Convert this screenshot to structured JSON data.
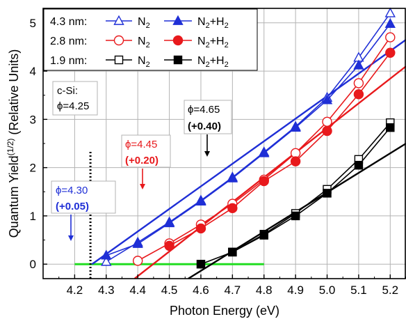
{
  "chart_data": {
    "type": "line",
    "xlabel": "Photon Energy (eV)",
    "ylabel_main": "Quantum Yield",
    "ylabel_sup": "(1/2)",
    "ylabel_units": " (Relative Units)",
    "xlim": [
      4.1,
      5.25
    ],
    "ylim": [
      -0.3,
      5.3
    ],
    "xticks": [
      "4.2",
      "4.3",
      "4.4",
      "4.5",
      "4.6",
      "4.7",
      "4.8",
      "4.9",
      "5.0",
      "5.1",
      "5.2"
    ],
    "yticks": [
      "0",
      "1",
      "2",
      "3",
      "4",
      "5"
    ],
    "grid": true,
    "colors": {
      "blue": "#1f2fd6",
      "red": "#e8191c",
      "black": "#000000",
      "green": "#22dd22"
    },
    "legend": {
      "placement": "top-left",
      "rows": [
        {
          "prefix": "4.3 nm:",
          "open_label": "N",
          "open_sub": "2",
          "filled_label": "N",
          "filled_sub": "2",
          "filled_plus": "+H",
          "filled_sub2": "2",
          "color": "blue",
          "marker": "triangle"
        },
        {
          "prefix": "2.8 nm:",
          "open_label": "N",
          "open_sub": "2",
          "filled_label": "N",
          "filled_sub": "2",
          "filled_plus": "+H",
          "filled_sub2": "2",
          "color": "red",
          "marker": "circle"
        },
        {
          "prefix": "1.9 nm:",
          "open_label": "N",
          "open_sub": "2",
          "filled_label": "N",
          "filled_sub": "2",
          "filled_plus": "+H",
          "filled_sub2": "2",
          "color": "black",
          "marker": "square"
        }
      ]
    },
    "series": [
      {
        "thickness": "4.3 nm",
        "gas": "N2",
        "color": "blue",
        "marker": "triangle",
        "filled": false,
        "x": [
          4.3,
          4.4,
          4.5,
          4.6,
          4.7,
          4.8,
          4.9,
          5.0,
          5.1,
          5.2
        ],
        "y": [
          0.05,
          0.45,
          0.87,
          1.32,
          1.8,
          2.32,
          2.85,
          3.45,
          4.28,
          5.2
        ]
      },
      {
        "thickness": "4.3 nm",
        "gas": "N2+H2",
        "color": "blue",
        "marker": "triangle",
        "filled": true,
        "x": [
          4.3,
          4.4,
          4.5,
          4.6,
          4.7,
          4.8,
          4.9,
          5.0,
          5.1,
          5.2
        ],
        "y": [
          0.18,
          0.42,
          0.85,
          1.3,
          1.78,
          2.3,
          2.83,
          3.4,
          4.12,
          4.98
        ]
      },
      {
        "thickness": "2.8 nm",
        "gas": "N2",
        "color": "red",
        "marker": "circle",
        "filled": false,
        "x": [
          4.4,
          4.5,
          4.6,
          4.7,
          4.8,
          4.9,
          5.0,
          5.1,
          5.2
        ],
        "y": [
          0.07,
          0.43,
          0.82,
          1.25,
          1.75,
          2.3,
          2.95,
          3.75,
          4.7
        ]
      },
      {
        "thickness": "2.8 nm",
        "gas": "N2+H2",
        "color": "red",
        "marker": "circle",
        "filled": true,
        "x": [
          4.5,
          4.6,
          4.7,
          4.8,
          4.9,
          5.0,
          5.1,
          5.2
        ],
        "y": [
          0.38,
          0.74,
          1.16,
          1.72,
          2.13,
          2.76,
          3.52,
          4.38
        ]
      },
      {
        "thickness": "1.9 nm",
        "gas": "N2",
        "color": "black",
        "marker": "square",
        "filled": false,
        "x": [
          4.7,
          4.8,
          4.9,
          5.0,
          5.1,
          5.2
        ],
        "y": [
          0.25,
          0.62,
          1.05,
          1.55,
          2.17,
          2.93
        ]
      },
      {
        "thickness": "1.9 nm",
        "gas": "N2+H2",
        "color": "black",
        "marker": "square",
        "filled": true,
        "x": [
          4.6,
          4.7,
          4.8,
          4.9,
          5.0,
          5.1,
          5.2
        ],
        "y": [
          0.0,
          0.25,
          0.6,
          1.0,
          1.47,
          2.05,
          2.83
        ]
      }
    ],
    "fit_lines": [
      {
        "color": "blue",
        "x": [
          4.255,
          5.25
        ],
        "y": [
          0.0,
          4.65
        ]
      },
      {
        "color": "red",
        "x": [
          4.39,
          5.25
        ],
        "y": [
          -0.3,
          4.1
        ]
      },
      {
        "color": "black",
        "x": [
          4.56,
          5.25
        ],
        "y": [
          -0.3,
          2.5
        ]
      }
    ],
    "baseline": {
      "color": "green",
      "x": [
        4.2,
        4.8
      ],
      "y": [
        0,
        0
      ]
    },
    "reference_line": {
      "x": 4.25,
      "y": [
        -0.3,
        2.35
      ]
    },
    "annotations": [
      {
        "id": "csi",
        "lines": [
          "c-Si:",
          "ϕ=4.25"
        ],
        "color": "black",
        "bold": [
          false,
          false
        ],
        "box": true,
        "arrow": false
      },
      {
        "id": "blue-phi",
        "lines": [
          "ϕ=4.30",
          "(+0.05)"
        ],
        "color": "blue",
        "bold": [
          false,
          true
        ],
        "box": true,
        "arrow": true
      },
      {
        "id": "red-phi",
        "lines": [
          "ϕ=4.45",
          "(+0.20)"
        ],
        "color": "red",
        "bold": [
          false,
          true
        ],
        "box": true,
        "arrow": true
      },
      {
        "id": "black-phi",
        "lines": [
          "ϕ=4.65",
          "(+0.40)"
        ],
        "color": "black",
        "bold": [
          false,
          true
        ],
        "box": true,
        "arrow": true
      }
    ]
  }
}
